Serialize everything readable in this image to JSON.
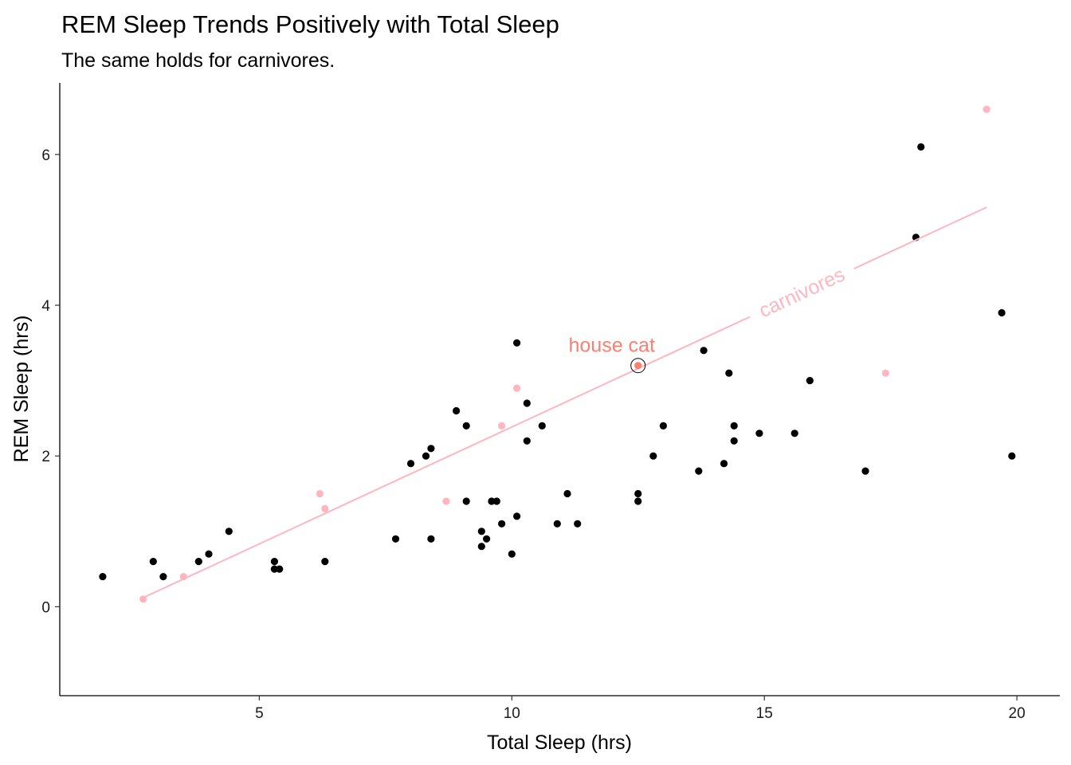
{
  "chart_data": {
    "type": "scatter",
    "title": "REM Sleep Trends Positively with Total Sleep",
    "subtitle": "The same holds for carnivores.",
    "xlabel": "Total Sleep (hrs)",
    "ylabel": "REM Sleep (hrs)",
    "xlim": [
      1.05,
      20.85
    ],
    "ylim": [
      -1.18,
      6.95
    ],
    "x_ticks": [
      5,
      10,
      15,
      20
    ],
    "y_ticks": [
      0,
      2,
      4,
      6
    ],
    "grid": false,
    "colors": {
      "other": "#000000",
      "carnivore": "#ffb6c1",
      "highlight": "#fa8072",
      "trend": "#ffb6c1"
    },
    "series": [
      {
        "group": "other",
        "points": [
          [
            1.9,
            0.4
          ],
          [
            2.9,
            0.6
          ],
          [
            3.1,
            0.4
          ],
          [
            3.8,
            0.6
          ],
          [
            4.0,
            0.7
          ],
          [
            4.4,
            1.0
          ],
          [
            5.3,
            0.6
          ],
          [
            5.3,
            0.5
          ],
          [
            5.4,
            0.5
          ],
          [
            6.3,
            0.6
          ],
          [
            7.7,
            0.9
          ],
          [
            8.0,
            1.9
          ],
          [
            8.3,
            2.0
          ],
          [
            8.4,
            2.1
          ],
          [
            8.4,
            0.9
          ],
          [
            8.9,
            2.6
          ],
          [
            9.1,
            2.4
          ],
          [
            9.1,
            1.4
          ],
          [
            9.4,
            1.0
          ],
          [
            9.4,
            0.8
          ],
          [
            9.5,
            0.9
          ],
          [
            9.6,
            1.4
          ],
          [
            9.7,
            1.4
          ],
          [
            9.8,
            1.1
          ],
          [
            10.0,
            0.7
          ],
          [
            10.1,
            1.2
          ],
          [
            10.1,
            3.5
          ],
          [
            10.3,
            2.7
          ],
          [
            10.3,
            2.2
          ],
          [
            10.6,
            2.4
          ],
          [
            10.9,
            1.1
          ],
          [
            11.1,
            1.5
          ],
          [
            11.3,
            1.1
          ],
          [
            12.5,
            1.5
          ],
          [
            12.5,
            1.4
          ],
          [
            12.8,
            2.0
          ],
          [
            13.0,
            2.4
          ],
          [
            13.7,
            1.8
          ],
          [
            13.8,
            3.4
          ],
          [
            14.2,
            1.9
          ],
          [
            14.3,
            3.1
          ],
          [
            14.4,
            2.4
          ],
          [
            14.4,
            2.2
          ],
          [
            14.9,
            2.3
          ],
          [
            15.6,
            2.3
          ],
          [
            15.9,
            3.0
          ],
          [
            17.0,
            1.8
          ],
          [
            18.0,
            4.9
          ],
          [
            18.1,
            6.1
          ],
          [
            19.7,
            3.9
          ],
          [
            19.9,
            2.0
          ]
        ]
      },
      {
        "group": "carnivore",
        "points": [
          [
            2.7,
            0.1
          ],
          [
            3.5,
            0.4
          ],
          [
            6.2,
            1.5
          ],
          [
            6.3,
            1.3
          ],
          [
            8.7,
            1.4
          ],
          [
            9.8,
            2.4
          ],
          [
            10.1,
            2.9
          ],
          [
            17.4,
            3.1
          ],
          [
            19.4,
            6.6
          ]
        ]
      }
    ],
    "highlight": {
      "label": "house cat",
      "x": 12.5,
      "y": 3.2
    },
    "trend_line": {
      "label": "carnivores",
      "from": [
        2.7,
        0.12
      ],
      "to": [
        19.4,
        5.3
      ]
    }
  }
}
